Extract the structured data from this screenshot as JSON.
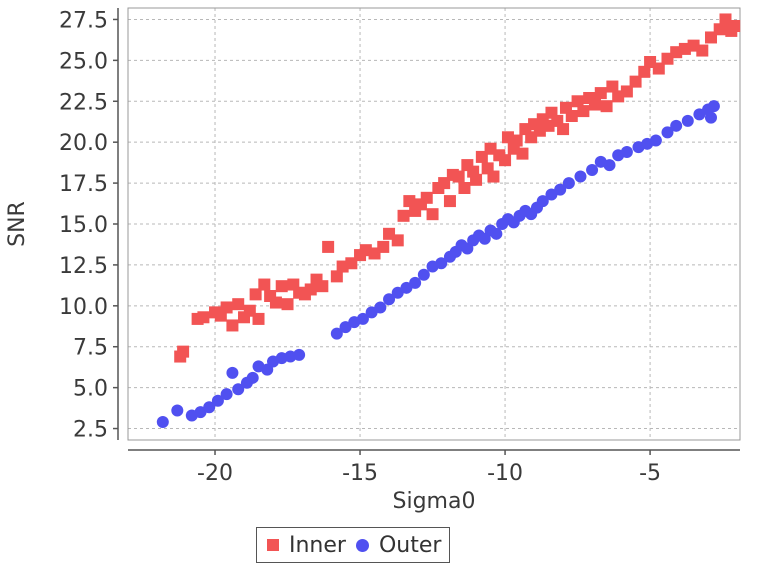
{
  "chart_data": {
    "type": "scatter",
    "title": "",
    "xlabel": "Sigma0",
    "ylabel": "SNR",
    "xlim": [
      -23.0,
      -1.9
    ],
    "ylim": [
      1.8,
      28.2
    ],
    "x_ticks": [
      -20,
      -15,
      -10,
      -5
    ],
    "x_tick_labels": [
      "-20",
      "-15",
      "-10",
      "-5"
    ],
    "y_ticks": [
      2.5,
      5.0,
      7.5,
      10.0,
      12.5,
      15.0,
      17.5,
      20.0,
      22.5,
      25.0,
      27.5
    ],
    "y_tick_labels": [
      "2.5",
      "5.0",
      "7.5",
      "10.0",
      "12.5",
      "15.0",
      "17.5",
      "20.0",
      "22.5",
      "25.0",
      "27.5"
    ],
    "grid": true,
    "legend_position": "bottom-center",
    "series": [
      {
        "name": "Inner",
        "marker": "square",
        "color": "#f25454",
        "points": [
          [
            -21.2,
            6.9
          ],
          [
            -21.1,
            7.2
          ],
          [
            -20.6,
            9.2
          ],
          [
            -20.4,
            9.3
          ],
          [
            -20.0,
            9.6
          ],
          [
            -19.8,
            9.4
          ],
          [
            -19.6,
            9.9
          ],
          [
            -19.4,
            8.8
          ],
          [
            -19.2,
            10.1
          ],
          [
            -19.0,
            9.3
          ],
          [
            -18.8,
            9.7
          ],
          [
            -18.6,
            10.7
          ],
          [
            -18.5,
            9.2
          ],
          [
            -18.3,
            11.3
          ],
          [
            -18.1,
            10.6
          ],
          [
            -17.9,
            10.2
          ],
          [
            -17.7,
            11.2
          ],
          [
            -17.5,
            10.1
          ],
          [
            -17.3,
            11.3
          ],
          [
            -17.1,
            10.8
          ],
          [
            -16.9,
            10.7
          ],
          [
            -16.7,
            11.0
          ],
          [
            -16.5,
            11.6
          ],
          [
            -16.3,
            11.2
          ],
          [
            -16.1,
            13.6
          ],
          [
            -15.8,
            11.8
          ],
          [
            -15.6,
            12.4
          ],
          [
            -15.3,
            12.6
          ],
          [
            -15.0,
            13.1
          ],
          [
            -14.8,
            13.4
          ],
          [
            -14.5,
            13.2
          ],
          [
            -14.2,
            13.6
          ],
          [
            -14.0,
            14.4
          ],
          [
            -13.7,
            14.0
          ],
          [
            -13.5,
            15.5
          ],
          [
            -13.3,
            16.4
          ],
          [
            -13.1,
            15.8
          ],
          [
            -12.9,
            16.2
          ],
          [
            -12.7,
            16.6
          ],
          [
            -12.5,
            15.6
          ],
          [
            -12.3,
            17.2
          ],
          [
            -12.1,
            17.5
          ],
          [
            -11.9,
            16.4
          ],
          [
            -11.8,
            18.0
          ],
          [
            -11.6,
            17.9
          ],
          [
            -11.4,
            17.2
          ],
          [
            -11.3,
            18.6
          ],
          [
            -11.1,
            18.2
          ],
          [
            -11.0,
            17.7
          ],
          [
            -10.8,
            19.1
          ],
          [
            -10.6,
            18.4
          ],
          [
            -10.5,
            19.6
          ],
          [
            -10.4,
            17.9
          ],
          [
            -10.2,
            19.2
          ],
          [
            -10.0,
            18.9
          ],
          [
            -9.9,
            20.3
          ],
          [
            -9.7,
            19.6
          ],
          [
            -9.6,
            20.1
          ],
          [
            -9.4,
            19.3
          ],
          [
            -9.3,
            20.8
          ],
          [
            -9.1,
            20.3
          ],
          [
            -9.0,
            21.1
          ],
          [
            -8.8,
            20.7
          ],
          [
            -8.7,
            21.4
          ],
          [
            -8.5,
            21.0
          ],
          [
            -8.4,
            21.8
          ],
          [
            -8.2,
            21.3
          ],
          [
            -8.0,
            20.8
          ],
          [
            -7.9,
            22.1
          ],
          [
            -7.7,
            21.6
          ],
          [
            -7.5,
            22.5
          ],
          [
            -7.3,
            21.9
          ],
          [
            -7.1,
            22.7
          ],
          [
            -6.9,
            22.3
          ],
          [
            -6.7,
            23.0
          ],
          [
            -6.5,
            22.2
          ],
          [
            -6.3,
            23.4
          ],
          [
            -6.1,
            22.8
          ],
          [
            -5.8,
            23.1
          ],
          [
            -5.5,
            23.7
          ],
          [
            -5.2,
            24.3
          ],
          [
            -5.0,
            24.9
          ],
          [
            -4.7,
            24.5
          ],
          [
            -4.4,
            25.1
          ],
          [
            -4.1,
            25.5
          ],
          [
            -3.8,
            25.7
          ],
          [
            -3.5,
            25.9
          ],
          [
            -3.2,
            25.6
          ],
          [
            -2.9,
            26.4
          ],
          [
            -2.6,
            26.9
          ],
          [
            -2.4,
            27.5
          ],
          [
            -2.2,
            26.8
          ],
          [
            -2.1,
            27.1
          ]
        ]
      },
      {
        "name": "Outer",
        "marker": "circle",
        "color": "#5050f0",
        "points": [
          [
            -21.8,
            2.9
          ],
          [
            -21.3,
            3.6
          ],
          [
            -20.8,
            3.3
          ],
          [
            -20.5,
            3.5
          ],
          [
            -20.2,
            3.8
          ],
          [
            -19.9,
            4.2
          ],
          [
            -19.6,
            4.6
          ],
          [
            -19.4,
            5.9
          ],
          [
            -19.2,
            4.9
          ],
          [
            -18.9,
            5.3
          ],
          [
            -18.7,
            5.6
          ],
          [
            -18.5,
            6.3
          ],
          [
            -18.2,
            6.1
          ],
          [
            -18.0,
            6.6
          ],
          [
            -17.7,
            6.8
          ],
          [
            -17.4,
            6.9
          ],
          [
            -17.1,
            7.0
          ],
          [
            -15.8,
            8.3
          ],
          [
            -15.5,
            8.7
          ],
          [
            -15.2,
            9.0
          ],
          [
            -14.9,
            9.2
          ],
          [
            -14.6,
            9.6
          ],
          [
            -14.3,
            9.9
          ],
          [
            -14.0,
            10.4
          ],
          [
            -13.7,
            10.8
          ],
          [
            -13.4,
            11.1
          ],
          [
            -13.1,
            11.4
          ],
          [
            -12.8,
            11.9
          ],
          [
            -12.5,
            12.4
          ],
          [
            -12.2,
            12.6
          ],
          [
            -11.9,
            13.0
          ],
          [
            -11.7,
            13.3
          ],
          [
            -11.5,
            13.7
          ],
          [
            -11.3,
            13.5
          ],
          [
            -11.1,
            14.0
          ],
          [
            -10.9,
            14.3
          ],
          [
            -10.7,
            14.1
          ],
          [
            -10.5,
            14.6
          ],
          [
            -10.3,
            14.4
          ],
          [
            -10.1,
            15.0
          ],
          [
            -9.9,
            15.3
          ],
          [
            -9.7,
            15.1
          ],
          [
            -9.5,
            15.5
          ],
          [
            -9.3,
            15.8
          ],
          [
            -9.1,
            15.6
          ],
          [
            -8.9,
            16.0
          ],
          [
            -8.7,
            16.4
          ],
          [
            -8.4,
            16.8
          ],
          [
            -8.1,
            17.1
          ],
          [
            -7.8,
            17.5
          ],
          [
            -7.4,
            17.9
          ],
          [
            -7.0,
            18.3
          ],
          [
            -6.7,
            18.8
          ],
          [
            -6.4,
            18.6
          ],
          [
            -6.1,
            19.2
          ],
          [
            -5.8,
            19.4
          ],
          [
            -5.4,
            19.7
          ],
          [
            -5.1,
            19.9
          ],
          [
            -4.8,
            20.1
          ],
          [
            -4.4,
            20.6
          ],
          [
            -4.1,
            21.0
          ],
          [
            -3.7,
            21.3
          ],
          [
            -3.3,
            21.7
          ],
          [
            -3.0,
            22.0
          ],
          [
            -2.9,
            21.5
          ],
          [
            -2.8,
            22.2
          ]
        ]
      }
    ]
  }
}
